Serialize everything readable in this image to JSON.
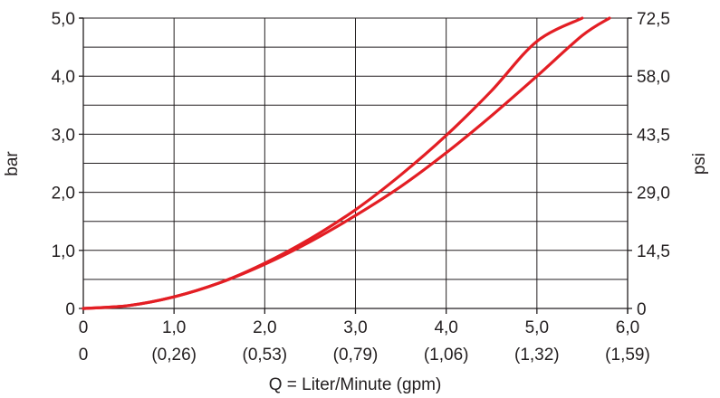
{
  "chart_data": {
    "type": "line",
    "xlabel": "Q = Liter/Minute (gpm)",
    "ylabel_left": "bar",
    "ylabel_right": "psi",
    "xlim": [
      0,
      6
    ],
    "ylim": [
      0,
      5
    ],
    "x_ticks": [
      {
        "value": 0,
        "label": "0",
        "sublabel": "0"
      },
      {
        "value": 1,
        "label": "1,0",
        "sublabel": "(0,26)"
      },
      {
        "value": 2,
        "label": "2,0",
        "sublabel": "(0,53)"
      },
      {
        "value": 3,
        "label": "3,0",
        "sublabel": "(0,79)"
      },
      {
        "value": 4,
        "label": "4,0",
        "sublabel": "(1,06)"
      },
      {
        "value": 5,
        "label": "5,0",
        "sublabel": "(1,32)"
      },
      {
        "value": 6,
        "label": "6,0",
        "sublabel": "(1,59)"
      }
    ],
    "y_ticks_left": [
      {
        "value": 0,
        "label": "0"
      },
      {
        "value": 1,
        "label": "1,0"
      },
      {
        "value": 2,
        "label": "2,0"
      },
      {
        "value": 3,
        "label": "3,0"
      },
      {
        "value": 4,
        "label": "4,0"
      },
      {
        "value": 5,
        "label": "5,0"
      }
    ],
    "y_ticks_right": [
      {
        "value": 0,
        "label": "0"
      },
      {
        "value": 1,
        "label": "14,5"
      },
      {
        "value": 2,
        "label": "29,0"
      },
      {
        "value": 3,
        "label": "43,5"
      },
      {
        "value": 4,
        "label": "58,0"
      },
      {
        "value": 5,
        "label": "72,5"
      }
    ],
    "x_minor_grid": [
      0.5,
      1.5,
      2.5,
      3.5,
      4.5,
      5.5
    ],
    "y_minor_grid": [
      0.5,
      1.5,
      2.5,
      3.5,
      4.5
    ],
    "grid": true,
    "series_color": "#e31e24",
    "series": [
      {
        "x": [
          0,
          0.5,
          1.0,
          1.5,
          2.0,
          2.5,
          3.0,
          3.5,
          4.0,
          4.5,
          5.0,
          5.5
        ],
        "values": [
          0,
          0.05,
          0.2,
          0.44,
          0.78,
          1.2,
          1.7,
          2.3,
          2.98,
          3.75,
          4.6,
          5.0
        ]
      },
      {
        "x": [
          0,
          0.5,
          1.0,
          1.5,
          2.0,
          2.5,
          3.0,
          3.5,
          4.0,
          4.5,
          5.0,
          5.5,
          5.8
        ],
        "values": [
          0,
          0.05,
          0.2,
          0.44,
          0.76,
          1.15,
          1.6,
          2.1,
          2.68,
          3.32,
          4.0,
          4.7,
          5.0
        ]
      }
    ]
  }
}
